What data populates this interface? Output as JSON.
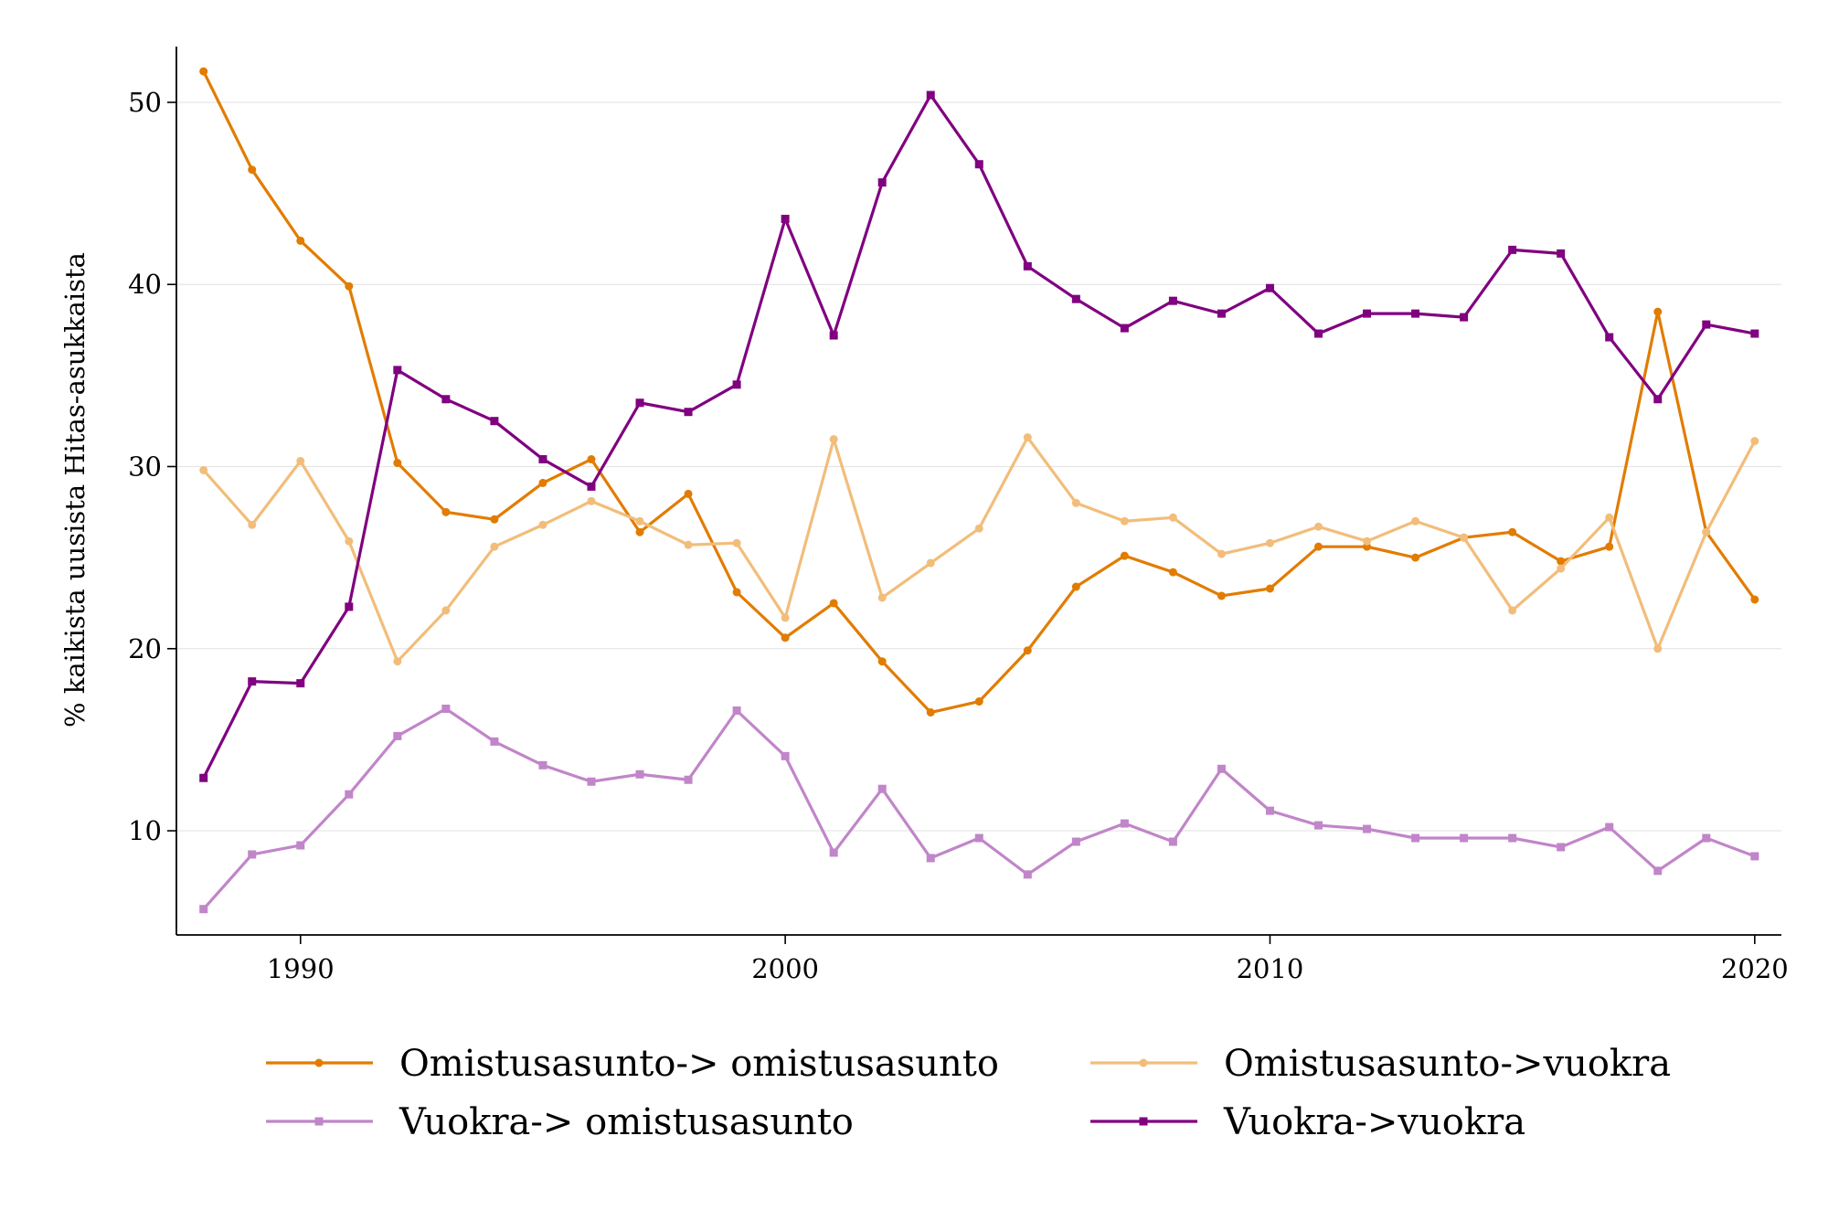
{
  "chart_data": {
    "type": "line",
    "title": "",
    "xlabel": "",
    "ylabel": "% kaikista uusista Hitas-asukkaista",
    "xlim": [
      1987.44,
      2020.55
    ],
    "ylim": [
      4.28,
      53.06
    ],
    "xticks": [
      1990,
      2000,
      2010,
      2020
    ],
    "yticks": [
      10,
      20,
      30,
      40,
      50
    ],
    "grid": true,
    "legend_position": "bottom",
    "x": [
      1988,
      1989,
      1990,
      1991,
      1992,
      1993,
      1994,
      1995,
      1996,
      1997,
      1998,
      1999,
      2000,
      2001,
      2002,
      2003,
      2004,
      2005,
      2006,
      2007,
      2008,
      2009,
      2010,
      2011,
      2012,
      2013,
      2014,
      2015,
      2016,
      2017,
      2018,
      2019,
      2020
    ],
    "series": [
      {
        "name": "Omistusasunto-> omistusasunto",
        "color": "#E27C00",
        "marker": "circle",
        "values": [
          51.7,
          46.3,
          42.4,
          39.9,
          30.2,
          27.5,
          27.1,
          29.1,
          30.4,
          26.4,
          28.5,
          23.1,
          20.6,
          22.5,
          19.3,
          16.5,
          17.1,
          19.9,
          23.4,
          25.1,
          24.2,
          22.9,
          23.3,
          25.6,
          25.6,
          25.0,
          26.1,
          26.4,
          24.8,
          25.6,
          38.5,
          26.4,
          22.7
        ]
      },
      {
        "name": "Omistusasunto->vuokra",
        "color": "#F2BD7A",
        "marker": "circle",
        "values": [
          29.8,
          26.8,
          30.3,
          25.9,
          19.3,
          22.1,
          25.6,
          26.8,
          28.1,
          27.0,
          25.7,
          25.8,
          21.7,
          31.5,
          22.8,
          24.7,
          26.6,
          31.6,
          28.0,
          27.0,
          27.2,
          25.2,
          25.8,
          26.7,
          25.9,
          27.0,
          26.1,
          22.1,
          24.4,
          27.2,
          20.0,
          26.4,
          31.4
        ]
      },
      {
        "name": "Vuokra-> omistusasunto",
        "color": "#C185C9",
        "marker": "square",
        "values": [
          5.7,
          8.7,
          9.2,
          12.0,
          15.2,
          16.7,
          14.9,
          13.6,
          12.7,
          13.1,
          12.8,
          16.6,
          14.1,
          8.8,
          12.3,
          8.5,
          9.6,
          7.6,
          9.4,
          10.4,
          9.4,
          13.4,
          11.1,
          10.3,
          10.1,
          9.6,
          9.6,
          9.6,
          9.1,
          10.2,
          7.8,
          9.6,
          8.6
        ]
      },
      {
        "name": "Vuokra->vuokra",
        "color": "#800080",
        "marker": "square",
        "values": [
          12.9,
          18.2,
          18.1,
          22.3,
          35.3,
          33.7,
          32.5,
          30.4,
          28.9,
          33.5,
          33.0,
          34.5,
          43.6,
          37.2,
          45.6,
          50.4,
          46.6,
          41.0,
          39.2,
          37.6,
          39.1,
          38.4,
          39.8,
          37.3,
          38.4,
          38.4,
          38.2,
          41.9,
          41.7,
          37.1,
          33.7,
          37.8,
          37.3
        ]
      }
    ]
  }
}
